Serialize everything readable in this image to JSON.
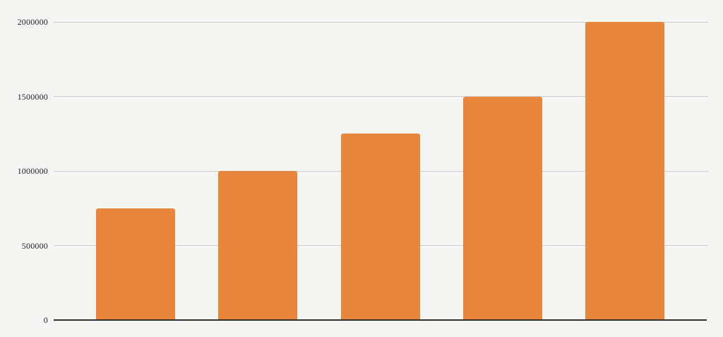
{
  "chart_data": {
    "type": "bar",
    "title": "",
    "xlabel": "",
    "ylabel": "",
    "categories": [
      "",
      "",
      "",
      "",
      ""
    ],
    "values": [
      750000,
      1000000,
      1250000,
      1500000,
      2000000
    ],
    "ylim": [
      0,
      2000000
    ],
    "yticks": [
      0,
      500000,
      1000000,
      1500000,
      2000000
    ],
    "ytick_labels": [
      "0",
      "500000",
      "1000000",
      "1500000",
      "2000000"
    ],
    "grid": true,
    "legend": false,
    "colors": {
      "bar_fill": "#e8873c",
      "background": "#f5f5f4",
      "gridline": "#cbcbcb",
      "axis_line": "#33312e",
      "tick_label": "#1f1f1f"
    }
  }
}
